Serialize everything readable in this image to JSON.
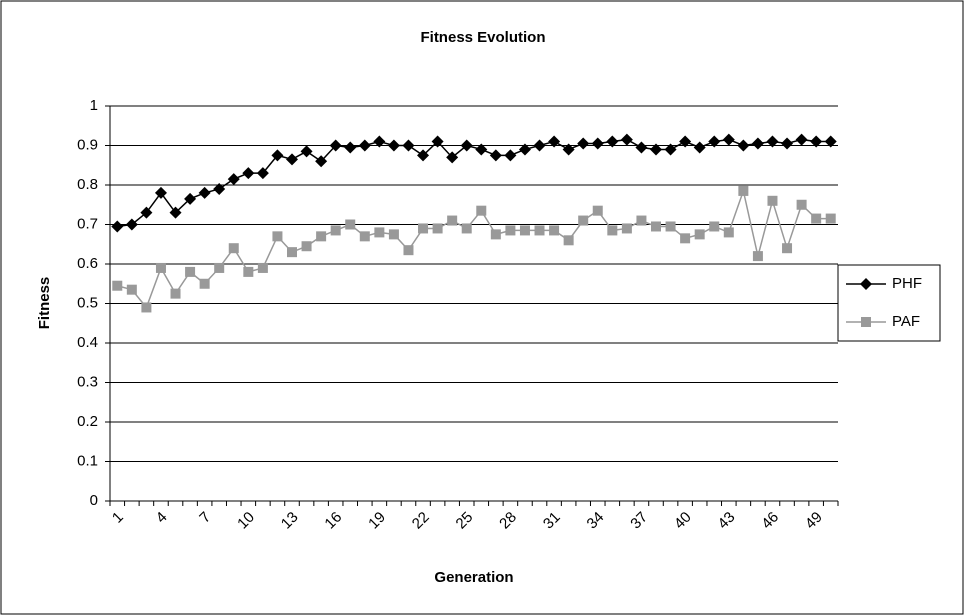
{
  "chart_data": {
    "type": "line",
    "title": "Fitness Evolution",
    "x_label": "Generation",
    "y_label": "Fitness",
    "categories": [
      1,
      null,
      null,
      4,
      null,
      null,
      7,
      null,
      null,
      10,
      null,
      null,
      13,
      null,
      null,
      16,
      null,
      null,
      19,
      null,
      null,
      22,
      null,
      null,
      25,
      null,
      null,
      28,
      null,
      null,
      31,
      null,
      null,
      34,
      null,
      null,
      37,
      null,
      null,
      40,
      null,
      null,
      43,
      null,
      null,
      46,
      null,
      null,
      49,
      null
    ],
    "series": [
      {
        "name": "PHF",
        "color": "#000000",
        "marker": "diamond",
        "values": [
          0.695,
          0.7,
          0.73,
          0.78,
          0.73,
          0.765,
          0.78,
          0.79,
          0.815,
          0.83,
          0.83,
          0.875,
          0.865,
          0.885,
          0.86,
          0.9,
          0.895,
          0.9,
          0.91,
          0.9,
          0.9,
          0.875,
          0.91,
          0.87,
          0.9,
          0.89,
          0.875,
          0.875,
          0.89,
          0.9,
          0.91,
          0.89,
          0.905,
          0.905,
          0.91,
          0.915,
          0.895,
          0.89,
          0.89,
          0.91,
          0.895,
          0.91,
          0.915,
          0.9,
          0.905,
          0.91,
          0.905,
          0.915,
          0.91,
          0.91
        ]
      },
      {
        "name": "PAF",
        "color": "#999999",
        "marker": "square",
        "values": [
          0.545,
          0.535,
          0.49,
          0.59,
          0.525,
          0.58,
          0.55,
          0.59,
          0.64,
          0.58,
          0.59,
          0.67,
          0.63,
          0.645,
          0.67,
          0.685,
          0.7,
          0.67,
          0.68,
          0.675,
          0.635,
          0.69,
          0.69,
          0.71,
          0.69,
          0.735,
          0.675,
          0.685,
          0.685,
          0.685,
          0.685,
          0.66,
          0.71,
          0.735,
          0.685,
          0.69,
          0.71,
          0.695,
          0.695,
          0.665,
          0.675,
          0.695,
          0.68,
          0.785,
          0.62,
          0.76,
          0.64,
          0.75,
          0.715,
          0.715
        ]
      }
    ],
    "ylim": [
      0,
      1
    ],
    "yticks": [
      0,
      0.1,
      0.2,
      0.3,
      0.4,
      0.5,
      0.6,
      0.7,
      0.8,
      0.9,
      1
    ],
    "grid": true,
    "legend": "right"
  }
}
